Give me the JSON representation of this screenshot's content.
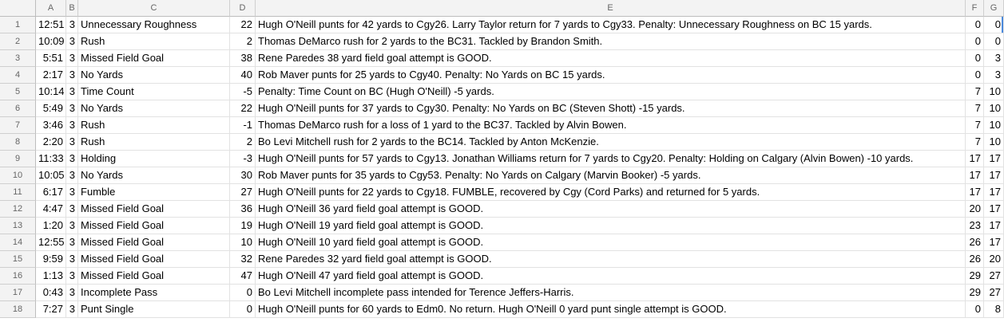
{
  "columns": [
    "A",
    "B",
    "C",
    "D",
    "E",
    "F",
    "G"
  ],
  "rows": [
    {
      "num": "1",
      "a": "12:51",
      "b": "3",
      "c": "Unnecessary Roughness",
      "d": "22",
      "e": "Hugh O'Neill punts for 42 yards to Cgy26. Larry Taylor return for 7 yards to Cgy33. Penalty: Unnecessary Roughness on BC 15 yards.",
      "f": "0",
      "g": "0"
    },
    {
      "num": "2",
      "a": "10:09",
      "b": "3",
      "c": "Rush",
      "d": "2",
      "e": "Thomas DeMarco rush for 2 yards to the BC31. Tackled by Brandon Smith.",
      "f": "0",
      "g": "0"
    },
    {
      "num": "3",
      "a": "5:51",
      "b": "3",
      "c": "Missed Field Goal",
      "d": "38",
      "e": "Rene Paredes 38 yard field goal attempt is GOOD.",
      "f": "0",
      "g": "3"
    },
    {
      "num": "4",
      "a": "2:17",
      "b": "3",
      "c": "No Yards",
      "d": "40",
      "e": "Rob Maver punts for 25 yards to Cgy40. Penalty: No Yards on BC 15 yards.",
      "f": "0",
      "g": "3"
    },
    {
      "num": "5",
      "a": "10:14",
      "b": "3",
      "c": "Time Count",
      "d": "-5",
      "e": "Penalty: Time Count on BC (Hugh O'Neill) -5 yards.",
      "f": "7",
      "g": "10"
    },
    {
      "num": "6",
      "a": "5:49",
      "b": "3",
      "c": "No Yards",
      "d": "22",
      "e": "Hugh O'Neill punts for 37 yards to Cgy30. Penalty: No Yards on BC (Steven Shott) -15 yards.",
      "f": "7",
      "g": "10"
    },
    {
      "num": "7",
      "a": "3:46",
      "b": "3",
      "c": "Rush",
      "d": "-1",
      "e": "Thomas DeMarco rush for a loss of 1 yard to the BC37. Tackled by Alvin Bowen.",
      "f": "7",
      "g": "10"
    },
    {
      "num": "8",
      "a": "2:20",
      "b": "3",
      "c": "Rush",
      "d": "2",
      "e": "Bo Levi Mitchell rush for 2 yards to the BC14. Tackled by Anton McKenzie.",
      "f": "7",
      "g": "10"
    },
    {
      "num": "9",
      "a": "11:33",
      "b": "3",
      "c": "Holding",
      "d": "-3",
      "e": "Hugh O'Neill punts for 57 yards to Cgy13. Jonathan Williams return for 7 yards to Cgy20. Penalty: Holding on Calgary (Alvin Bowen) -10 yards.",
      "f": "17",
      "g": "17"
    },
    {
      "num": "10",
      "a": "10:05",
      "b": "3",
      "c": "No Yards",
      "d": "30",
      "e": "Rob Maver punts for 35 yards to Cgy53. Penalty: No Yards on Calgary (Marvin Booker) -5 yards.",
      "f": "17",
      "g": "17"
    },
    {
      "num": "11",
      "a": "6:17",
      "b": "3",
      "c": "Fumble",
      "d": "27",
      "e": "Hugh O'Neill punts for 22 yards to Cgy18. FUMBLE, recovered by Cgy (Cord Parks) and returned for 5 yards.",
      "f": "17",
      "g": "17"
    },
    {
      "num": "12",
      "a": "4:47",
      "b": "3",
      "c": "Missed Field Goal",
      "d": "36",
      "e": "Hugh O'Neill 36 yard field goal attempt is GOOD.",
      "f": "20",
      "g": "17"
    },
    {
      "num": "13",
      "a": "1:20",
      "b": "3",
      "c": "Missed Field Goal",
      "d": "19",
      "e": "Hugh O'Neill 19 yard field goal attempt is GOOD.",
      "f": "23",
      "g": "17"
    },
    {
      "num": "14",
      "a": "12:55",
      "b": "3",
      "c": "Missed Field Goal",
      "d": "10",
      "e": "Hugh O'Neill 10 yard field goal attempt is GOOD.",
      "f": "26",
      "g": "17"
    },
    {
      "num": "15",
      "a": "9:59",
      "b": "3",
      "c": "Missed Field Goal",
      "d": "32",
      "e": "Rene Paredes 32 yard field goal attempt is GOOD.",
      "f": "26",
      "g": "20"
    },
    {
      "num": "16",
      "a": "1:13",
      "b": "3",
      "c": "Missed Field Goal",
      "d": "47",
      "e": "Hugh O'Neill 47 yard field goal attempt is GOOD.",
      "f": "29",
      "g": "27"
    },
    {
      "num": "17",
      "a": "0:43",
      "b": "3",
      "c": "Incomplete Pass",
      "d": "0",
      "e": "Bo Levi Mitchell incomplete pass intended for Terence Jeffers-Harris.",
      "f": "29",
      "g": "27"
    },
    {
      "num": "18",
      "a": "7:27",
      "b": "3",
      "c": "Punt Single",
      "d": "0",
      "e": "Hugh O'Neill punts for 60 yards to Edm0. No return. Hugh O'Neill 0 yard punt single attempt is GOOD.",
      "f": "0",
      "g": "8"
    }
  ]
}
